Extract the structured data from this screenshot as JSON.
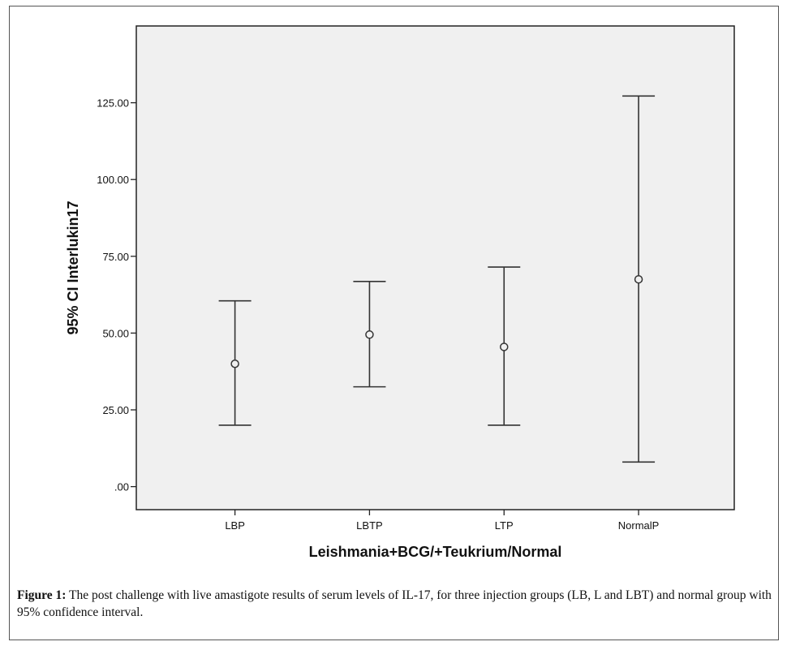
{
  "chart_data": {
    "type": "errorbar",
    "xlabel": "Leishmania+BCG/+Teukrium/Normal",
    "ylabel": "95% CI Interlukin17",
    "ylim": [
      -7.5,
      150
    ],
    "yticks": [
      0,
      25,
      50,
      75,
      100,
      125
    ],
    "ytick_labels": [
      ".00",
      "25.00",
      "50.00",
      "75.00",
      "100.00",
      "125.00"
    ],
    "categories": [
      "LBP",
      "LBTP",
      "LTP",
      "NormalP"
    ],
    "means": [
      40.0,
      49.5,
      45.5,
      67.5
    ],
    "lower": [
      20.0,
      32.5,
      20.0,
      8.0
    ],
    "upper": [
      60.5,
      66.8,
      71.5,
      127.2
    ],
    "grid": false,
    "background": "#f0f0f0",
    "line_color": "#333333"
  },
  "caption": {
    "lead": "Figure 1:",
    "text": " The post challenge with live amastigote results of serum levels of IL-17, for three injection groups (LB, L and LBT) and normal group with 95% confidence interval."
  }
}
